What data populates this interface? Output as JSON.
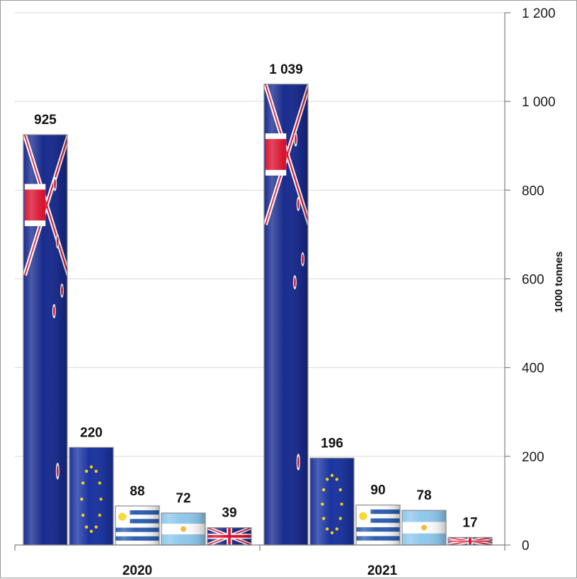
{
  "chart_data": {
    "type": "bar",
    "categories": [
      "2020",
      "2021"
    ],
    "series": [
      {
        "flag": "new-zealand",
        "values": [
          925,
          1039
        ],
        "labels": [
          "925",
          "1 039"
        ]
      },
      {
        "flag": "european-union",
        "values": [
          220,
          196
        ],
        "labels": [
          "220",
          "196"
        ]
      },
      {
        "flag": "uruguay",
        "values": [
          88,
          90
        ],
        "labels": [
          "88",
          "90"
        ]
      },
      {
        "flag": "argentina",
        "values": [
          72,
          78
        ],
        "labels": [
          "72",
          "78"
        ]
      },
      {
        "flag": "united-kingdom",
        "values": [
          39,
          17
        ],
        "labels": [
          "39",
          "17"
        ]
      }
    ],
    "ylabel": "1000 tonnes",
    "ylim": [
      0,
      1200
    ],
    "yticks": [
      0,
      200,
      400,
      600,
      800,
      1000,
      1200
    ],
    "ytick_labels": [
      "0",
      "200",
      "400",
      "600",
      "800",
      "1 000",
      "1 200"
    ],
    "y_axis_side": "right",
    "grid": true,
    "legend": false,
    "colors": {
      "flag_blue": "#1a2c8e",
      "flag_red": "#d8122f",
      "uk_blue": "#1c2a82",
      "argentina_sky": "#8fc8ec",
      "uruguay_blue": "#2d5fb0",
      "eu_gold": "#f5d20a",
      "gridline": "#d9d9d9",
      "axis": "#808080"
    }
  }
}
